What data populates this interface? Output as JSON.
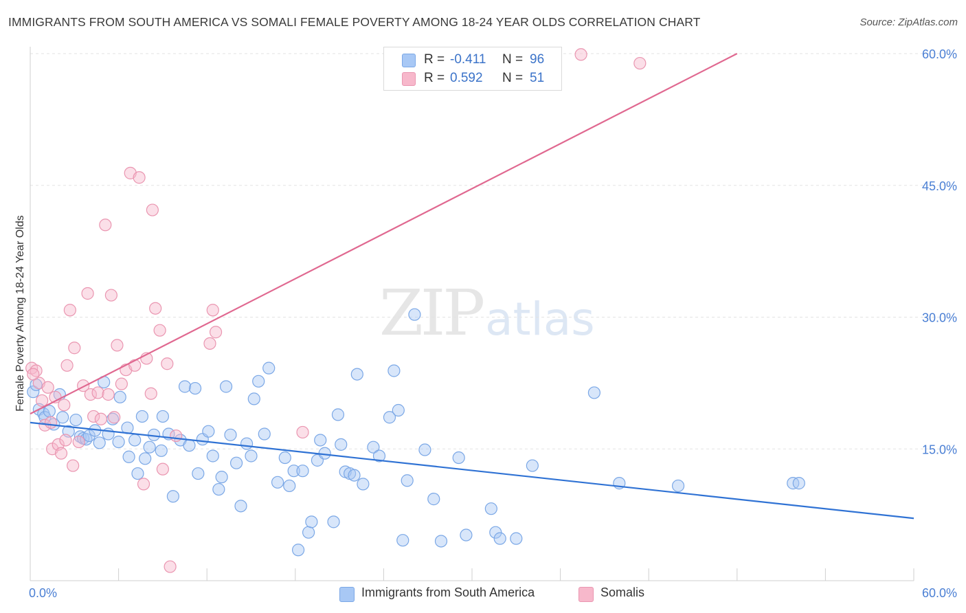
{
  "header": {
    "title": "IMMIGRANTS FROM SOUTH AMERICA VS SOMALI FEMALE POVERTY AMONG 18-24 YEAR OLDS CORRELATION CHART",
    "source": "Source: ZipAtlas.com"
  },
  "watermark": {
    "zip": "ZIP",
    "atlas": "atlas"
  },
  "legend": {
    "rows": [
      {
        "r_label": "R =",
        "r_value": "-0.411",
        "n_label": "N =",
        "n_value": "96"
      },
      {
        "r_label": "R =",
        "r_value": "0.592",
        "n_label": "N =",
        "n_value": "51"
      }
    ]
  },
  "bottom_legend": {
    "items": [
      {
        "label": "Immigrants from South America"
      },
      {
        "label": "Somalis"
      }
    ]
  },
  "chart_data": {
    "type": "scatter",
    "title": "IMMIGRANTS FROM SOUTH AMERICA VS SOMALI FEMALE POVERTY AMONG 18-24 YEAR OLDS CORRELATION CHART",
    "xlabel": "",
    "ylabel": "Female Poverty Among 18-24 Year Olds",
    "xlim": [
      0,
      60
    ],
    "ylim": [
      0,
      60
    ],
    "x_tick_labels": [
      "0.0%",
      "60.0%"
    ],
    "y_ticks": [
      15,
      30,
      45,
      60
    ],
    "y_tick_labels": [
      "15.0%",
      "30.0%",
      "45.0%",
      "60.0%"
    ],
    "grid": true,
    "legend_position": "top-center",
    "colors": {
      "blue_fill": "#a8c8f5",
      "blue_stroke": "#7aa7e6",
      "blue_line": "#2f72d4",
      "pink_fill": "#f7b8cb",
      "pink_stroke": "#ea95b0",
      "pink_line": "#e06890",
      "axis_text": "#4a7fd4",
      "grid": "#e3e3e3"
    },
    "series": [
      {
        "name": "Immigrants from South America",
        "color": "#a8c8f5",
        "r": -0.411,
        "n": 96,
        "trend": [
          [
            0,
            18.0
          ],
          [
            60,
            7.1
          ]
        ],
        "points": [
          [
            0.2,
            21.5
          ],
          [
            0.6,
            19.5
          ],
          [
            0.9,
            19.0
          ],
          [
            1.0,
            18.6
          ],
          [
            1.3,
            19.3
          ],
          [
            1.6,
            17.8
          ],
          [
            2.2,
            18.6
          ],
          [
            2.0,
            21.2
          ],
          [
            3.1,
            18.3
          ],
          [
            3.4,
            16.4
          ],
          [
            3.6,
            16.2
          ],
          [
            3.8,
            16.1
          ],
          [
            4.0,
            16.5
          ],
          [
            4.4,
            17.1
          ],
          [
            4.7,
            15.7
          ],
          [
            5.0,
            22.6
          ],
          [
            5.3,
            16.7
          ],
          [
            5.6,
            18.4
          ],
          [
            6.0,
            15.8
          ],
          [
            6.1,
            20.9
          ],
          [
            6.6,
            17.4
          ],
          [
            6.7,
            14.1
          ],
          [
            7.1,
            16.0
          ],
          [
            7.3,
            12.2
          ],
          [
            7.6,
            18.7
          ],
          [
            7.8,
            13.9
          ],
          [
            8.1,
            15.2
          ],
          [
            8.4,
            16.6
          ],
          [
            8.9,
            14.8
          ],
          [
            9.4,
            16.7
          ],
          [
            9.7,
            9.6
          ],
          [
            10.2,
            16.0
          ],
          [
            10.5,
            22.1
          ],
          [
            10.8,
            15.4
          ],
          [
            11.2,
            21.9
          ],
          [
            11.4,
            12.2
          ],
          [
            11.7,
            16.1
          ],
          [
            12.1,
            17.0
          ],
          [
            12.4,
            14.2
          ],
          [
            12.8,
            10.4
          ],
          [
            13.0,
            11.8
          ],
          [
            13.3,
            22.1
          ],
          [
            13.6,
            16.6
          ],
          [
            14.0,
            13.4
          ],
          [
            14.3,
            8.5
          ],
          [
            14.7,
            15.6
          ],
          [
            15.0,
            14.2
          ],
          [
            15.2,
            20.7
          ],
          [
            15.5,
            22.7
          ],
          [
            15.9,
            16.7
          ],
          [
            16.2,
            24.2
          ],
          [
            16.8,
            11.2
          ],
          [
            17.3,
            14.0
          ],
          [
            17.6,
            10.8
          ],
          [
            17.9,
            12.5
          ],
          [
            18.2,
            3.5
          ],
          [
            18.5,
            12.5
          ],
          [
            18.9,
            5.5
          ],
          [
            19.1,
            6.7
          ],
          [
            19.5,
            13.7
          ],
          [
            19.7,
            16.0
          ],
          [
            20.0,
            14.5
          ],
          [
            20.6,
            6.7
          ],
          [
            20.9,
            18.9
          ],
          [
            21.1,
            15.5
          ],
          [
            21.4,
            12.4
          ],
          [
            21.7,
            12.2
          ],
          [
            22.2,
            23.5
          ],
          [
            22.6,
            11.0
          ],
          [
            23.3,
            15.2
          ],
          [
            23.7,
            14.2
          ],
          [
            24.4,
            18.6
          ],
          [
            24.7,
            23.9
          ],
          [
            25.0,
            19.4
          ],
          [
            25.3,
            4.6
          ],
          [
            25.6,
            11.4
          ],
          [
            26.1,
            30.3
          ],
          [
            26.8,
            14.9
          ],
          [
            27.4,
            9.3
          ],
          [
            27.9,
            4.5
          ],
          [
            29.1,
            14.0
          ],
          [
            29.6,
            5.2
          ],
          [
            31.3,
            8.2
          ],
          [
            31.6,
            5.5
          ],
          [
            31.9,
            4.8
          ],
          [
            33.0,
            4.8
          ],
          [
            34.1,
            13.1
          ],
          [
            38.3,
            21.4
          ],
          [
            40.0,
            11.1
          ],
          [
            44.0,
            10.8
          ],
          [
            51.8,
            11.1
          ],
          [
            52.2,
            11.1
          ],
          [
            0.4,
            22.3
          ],
          [
            2.6,
            17.0
          ],
          [
            9.0,
            18.7
          ],
          [
            22.0,
            12.0
          ]
        ]
      },
      {
        "name": "Somalis",
        "color": "#f7b8cb",
        "r": 0.592,
        "n": 51,
        "trend": [
          [
            0,
            19.0
          ],
          [
            48,
            60.0
          ]
        ],
        "points": [
          [
            0.1,
            24.2
          ],
          [
            0.4,
            23.9
          ],
          [
            0.6,
            22.5
          ],
          [
            0.8,
            20.5
          ],
          [
            1.0,
            17.7
          ],
          [
            1.2,
            22.0
          ],
          [
            1.5,
            15.0
          ],
          [
            1.7,
            20.9
          ],
          [
            1.9,
            15.5
          ],
          [
            2.1,
            14.5
          ],
          [
            2.3,
            20.0
          ],
          [
            2.5,
            24.5
          ],
          [
            2.7,
            30.8
          ],
          [
            2.9,
            13.1
          ],
          [
            3.0,
            26.5
          ],
          [
            3.3,
            15.8
          ],
          [
            3.6,
            22.2
          ],
          [
            3.9,
            32.7
          ],
          [
            4.1,
            21.2
          ],
          [
            4.3,
            18.7
          ],
          [
            4.6,
            21.4
          ],
          [
            4.8,
            18.4
          ],
          [
            5.1,
            40.5
          ],
          [
            5.3,
            21.2
          ],
          [
            5.5,
            32.5
          ],
          [
            5.7,
            18.6
          ],
          [
            5.9,
            26.8
          ],
          [
            6.2,
            22.4
          ],
          [
            6.5,
            24.0
          ],
          [
            6.8,
            46.4
          ],
          [
            7.1,
            24.5
          ],
          [
            7.4,
            45.9
          ],
          [
            7.7,
            11.0
          ],
          [
            7.9,
            25.3
          ],
          [
            8.2,
            21.3
          ],
          [
            8.3,
            42.2
          ],
          [
            8.5,
            31.0
          ],
          [
            8.8,
            28.5
          ],
          [
            9.0,
            12.7
          ],
          [
            9.3,
            24.7
          ],
          [
            9.5,
            1.6
          ],
          [
            9.9,
            16.5
          ],
          [
            12.2,
            27.0
          ],
          [
            12.4,
            30.8
          ],
          [
            12.6,
            28.3
          ],
          [
            18.5,
            16.9
          ],
          [
            37.4,
            59.9
          ],
          [
            41.4,
            58.9
          ],
          [
            0.2,
            23.5
          ],
          [
            1.4,
            18.0
          ],
          [
            2.4,
            16.0
          ]
        ]
      }
    ]
  }
}
